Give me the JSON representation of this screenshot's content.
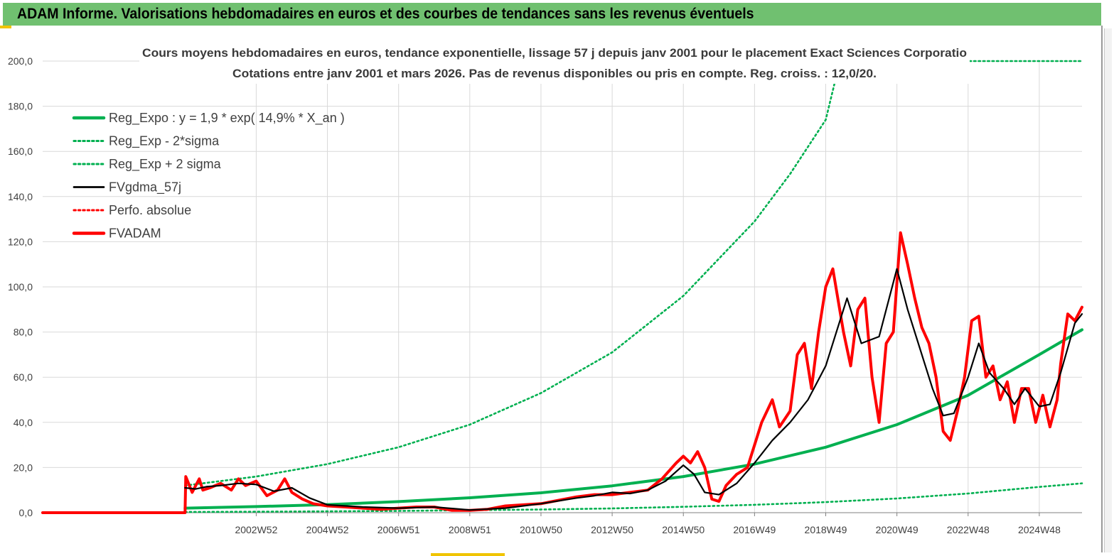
{
  "banner": {
    "title": "ADAM Informe. Valorisations hebdomadaires en euros et des courbes de tendances sans les revenus éventuels"
  },
  "colors": {
    "banner_bg": "#70c070",
    "trend_green": "#00b050",
    "price_red": "#ff0000",
    "smooth_black": "#000000",
    "grid": "#d9d9d9",
    "edge_marks": "#f0c400"
  },
  "chart_data": {
    "type": "line",
    "title": "Cours moyens hebdomadaires en euros, tendance exponentielle, lissage 57 j depuis janv 2001  pour le placement Exact Sciences  Corporatio",
    "subtitle": "Cotations entre janv 2001 et mars 2026. Pas de revenus disponibles ou pris en compte. Reg. croiss. : 12,0/20.",
    "xlabel": "",
    "ylabel": "",
    "ylim": [
      0,
      200
    ],
    "xlim": [
      1997.0,
      2026.2
    ],
    "grid": true,
    "legend_position": "top-left",
    "y_ticks": [
      "0,0",
      "20,0",
      "40,0",
      "60,0",
      "80,0",
      "100,0",
      "120,0",
      "140,0",
      "160,0",
      "180,0",
      "200,0"
    ],
    "x_ticks": [
      {
        "label": "2002W52",
        "x": 2003.0
      },
      {
        "label": "2004W52",
        "x": 2005.0
      },
      {
        "label": "2006W51",
        "x": 2007.0
      },
      {
        "label": "2008W51",
        "x": 2009.0
      },
      {
        "label": "2010W50",
        "x": 2011.0
      },
      {
        "label": "2012W50",
        "x": 2013.0
      },
      {
        "label": "2014W50",
        "x": 2015.0
      },
      {
        "label": "2016W49",
        "x": 2017.0
      },
      {
        "label": "2018W49",
        "x": 2019.0
      },
      {
        "label": "2020W49",
        "x": 2021.0
      },
      {
        "label": "2022W48",
        "x": 2023.0
      },
      {
        "label": "2024W48",
        "x": 2025.0
      }
    ],
    "series": [
      {
        "name": "Reg_Expo : y = 1,9 * exp( 14,9% *  X_an )",
        "color": "#00b050",
        "style": "solid-thick",
        "x": [
          2001.0,
          2003.0,
          2005.0,
          2007.0,
          2009.0,
          2011.0,
          2013.0,
          2015.0,
          2017.0,
          2019.0,
          2021.0,
          2023.0,
          2025.0,
          2026.2
        ],
        "y": [
          2.0,
          2.7,
          3.6,
          4.9,
          6.6,
          8.8,
          11.9,
          16.0,
          21.5,
          29.0,
          39.0,
          52.0,
          70.0,
          81.0
        ]
      },
      {
        "name": "Reg_Exp - 2*sigma",
        "color": "#00b050",
        "style": "dotted",
        "x": [
          2001.0,
          2003.0,
          2005.0,
          2007.0,
          2009.0,
          2011.0,
          2013.0,
          2015.0,
          2017.0,
          2019.0,
          2021.0,
          2023.0,
          2025.0,
          2026.2
        ],
        "y": [
          0.3,
          0.45,
          0.6,
          0.8,
          1.1,
          1.4,
          1.9,
          2.6,
          3.5,
          4.7,
          6.3,
          8.5,
          11.4,
          13.0
        ]
      },
      {
        "name": "Reg_Exp + 2 sigma",
        "color": "#00b050",
        "style": "dotted",
        "x": [
          2001.0,
          2003.0,
          2005.0,
          2007.0,
          2009.0,
          2011.0,
          2013.0,
          2015.0,
          2017.0,
          2018.0,
          2019.0,
          2019.4,
          2020.2,
          2022.0,
          2024.0,
          2026.2
        ],
        "y": [
          12.0,
          16.0,
          21.5,
          29.0,
          39.0,
          53.0,
          71.0,
          96.0,
          129.0,
          150.0,
          174.0,
          200.0,
          200.0,
          200.0,
          200.0,
          200.0
        ]
      },
      {
        "name": "FVgdma_57j",
        "color": "#000000",
        "style": "solid",
        "x": [
          2001.0,
          2001.3,
          2001.6,
          2002.0,
          2002.5,
          2003.0,
          2003.5,
          2004.0,
          2004.5,
          2005.0,
          2006.0,
          2007.0,
          2008.0,
          2009.0,
          2010.0,
          2011.0,
          2012.0,
          2012.5,
          2013.0,
          2013.5,
          2014.0,
          2014.5,
          2015.0,
          2015.3,
          2015.6,
          2016.0,
          2016.5,
          2017.0,
          2017.5,
          2018.0,
          2018.5,
          2019.0,
          2019.3,
          2019.6,
          2020.0,
          2020.5,
          2021.0,
          2021.3,
          2021.6,
          2022.0,
          2022.3,
          2022.6,
          2023.0,
          2023.3,
          2023.6,
          2024.0,
          2024.3,
          2024.6,
          2025.0,
          2025.3,
          2025.6,
          2026.0,
          2026.2
        ],
        "y": [
          11.0,
          10.5,
          11.5,
          12.0,
          13.0,
          12.5,
          9.5,
          11.0,
          6.5,
          3.5,
          2.5,
          2.0,
          2.5,
          1.2,
          2.0,
          4.0,
          6.5,
          7.5,
          9.0,
          8.5,
          10.0,
          14.0,
          21.0,
          17.0,
          9.0,
          8.0,
          13.0,
          22.0,
          32.0,
          40.0,
          50.0,
          65.0,
          80.0,
          95.0,
          75.0,
          78.0,
          108.0,
          90.0,
          75.0,
          55.0,
          43.0,
          44.0,
          60.0,
          75.0,
          62.0,
          55.0,
          48.0,
          55.0,
          47.0,
          48.0,
          62.0,
          84.0,
          88.0
        ]
      },
      {
        "name": "Perfo. absolue",
        "color": "#ff0000",
        "style": "dotted",
        "x": [
          1997.0,
          2001.0
        ],
        "y": [
          0.0,
          0.0
        ]
      },
      {
        "name": "FVADAM",
        "color": "#ff0000",
        "style": "solid-thick",
        "x": [
          1997.0,
          2001.0,
          2001.02,
          2001.2,
          2001.4,
          2001.5,
          2001.7,
          2002.0,
          2002.3,
          2002.5,
          2002.7,
          2003.0,
          2003.3,
          2003.6,
          2003.8,
          2004.0,
          2004.3,
          2004.6,
          2005.0,
          2005.5,
          2006.0,
          2006.5,
          2007.0,
          2007.5,
          2008.0,
          2008.5,
          2009.0,
          2009.5,
          2010.0,
          2010.5,
          2011.0,
          2011.5,
          2012.0,
          2012.5,
          2013.0,
          2013.5,
          2014.0,
          2014.4,
          2014.8,
          2015.0,
          2015.2,
          2015.4,
          2015.6,
          2015.8,
          2016.0,
          2016.2,
          2016.5,
          2016.8,
          2017.0,
          2017.2,
          2017.5,
          2017.7,
          2018.0,
          2018.2,
          2018.4,
          2018.6,
          2018.8,
          2019.0,
          2019.2,
          2019.5,
          2019.7,
          2019.9,
          2020.1,
          2020.3,
          2020.5,
          2020.7,
          2020.9,
          2021.1,
          2021.3,
          2021.5,
          2021.7,
          2021.9,
          2022.1,
          2022.3,
          2022.5,
          2022.7,
          2022.9,
          2023.1,
          2023.3,
          2023.5,
          2023.7,
          2023.9,
          2024.1,
          2024.3,
          2024.5,
          2024.7,
          2024.9,
          2025.1,
          2025.3,
          2025.5,
          2025.6,
          2025.8,
          2026.0,
          2026.2
        ],
        "y": [
          0.0,
          0.0,
          16.0,
          9.0,
          15.0,
          10.0,
          11.0,
          13.0,
          10.0,
          15.0,
          12.0,
          14.0,
          7.5,
          10.0,
          15.0,
          9.0,
          6.0,
          4.0,
          3.0,
          2.5,
          2.0,
          1.5,
          2.0,
          2.5,
          2.5,
          1.0,
          1.0,
          1.5,
          3.0,
          3.5,
          4.0,
          5.5,
          7.0,
          8.0,
          8.0,
          9.0,
          10.0,
          15.0,
          22.0,
          25.0,
          22.0,
          27.0,
          20.0,
          6.0,
          5.0,
          12.0,
          17.0,
          20.0,
          30.0,
          40.0,
          50.0,
          38.0,
          45.0,
          70.0,
          75.0,
          55.0,
          80.0,
          100.0,
          108.0,
          80.0,
          65.0,
          90.0,
          95.0,
          60.0,
          40.0,
          75.0,
          80.0,
          124.0,
          110.0,
          95.0,
          82.0,
          75.0,
          60.0,
          36.0,
          32.0,
          45.0,
          60.0,
          85.0,
          87.0,
          60.0,
          65.0,
          50.0,
          58.0,
          40.0,
          55.0,
          55.0,
          40.0,
          52.0,
          38.0,
          50.0,
          66.0,
          88.0,
          85.0,
          91.0
        ]
      }
    ]
  }
}
